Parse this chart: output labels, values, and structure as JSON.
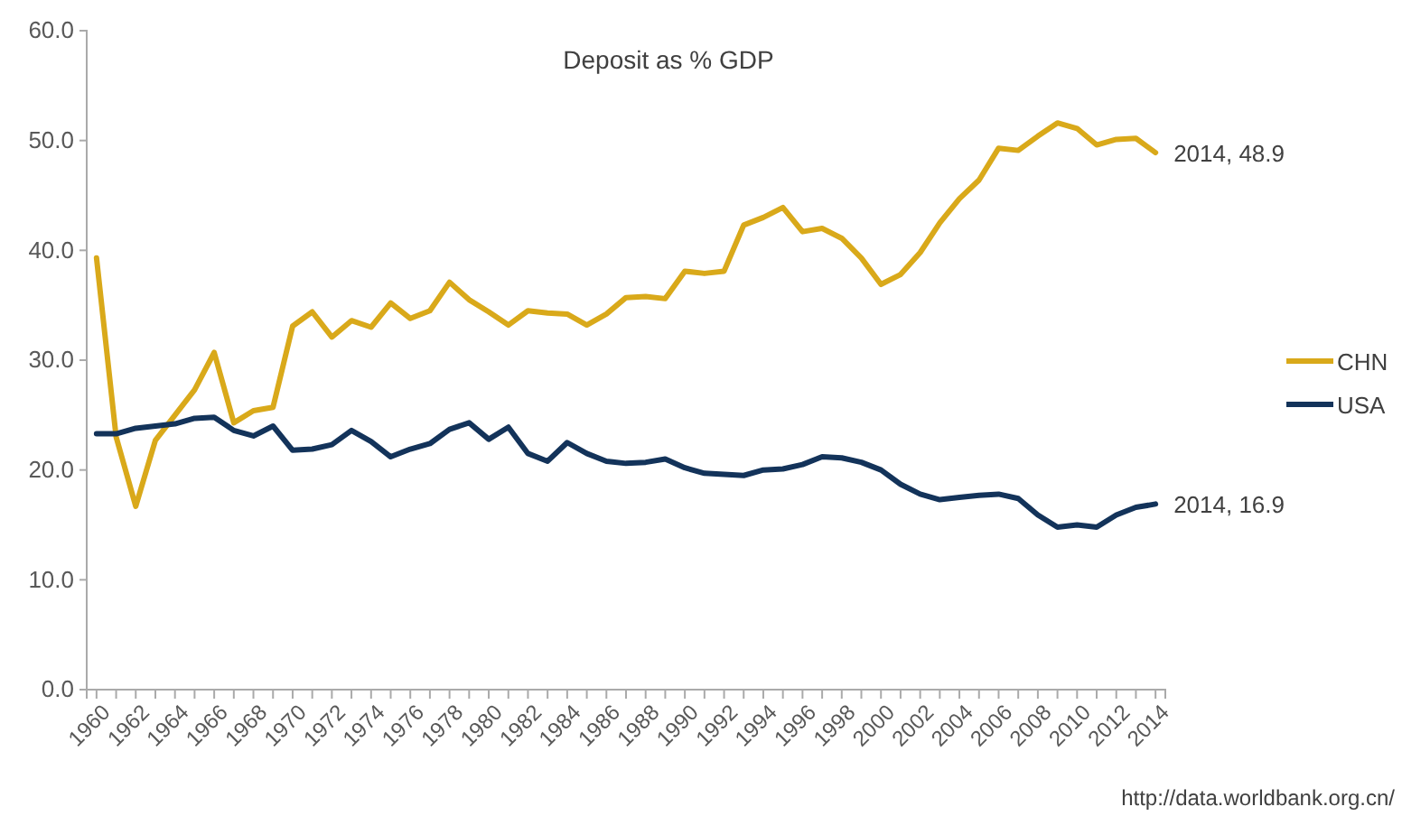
{
  "chart_data": {
    "type": "line",
    "title": "Deposit as % GDP",
    "categories": [
      "1960",
      null,
      "1962",
      null,
      "1964",
      null,
      "1966",
      null,
      "1968",
      null,
      "1970",
      null,
      "1972",
      null,
      "1974",
      null,
      "1976",
      null,
      "1978",
      null,
      "1980",
      null,
      "1982",
      null,
      "1984",
      null,
      "1986",
      null,
      "1988",
      null,
      "1990",
      null,
      "1992",
      null,
      "1994",
      null,
      "1996",
      null,
      "1998",
      null,
      "2000",
      null,
      "2002",
      null,
      "2004",
      null,
      "2006",
      null,
      "2008",
      null,
      "2010",
      null,
      "2012",
      null,
      "2014"
    ],
    "series": [
      {
        "name": "CHN",
        "color": "#d9a91a",
        "values": [
          39.3,
          23,
          16.7,
          22.7,
          25,
          27.3,
          30.7,
          24.3,
          25.4,
          25.7,
          33.1,
          34.4,
          32.1,
          33.6,
          33.0,
          35.2,
          33.8,
          34.5,
          37.1,
          35.5,
          34.4,
          33.2,
          34.5,
          34.3,
          34.2,
          33.2,
          34.2,
          35.7,
          35.8,
          35.6,
          38.1,
          37.9,
          38.1,
          42.3,
          43.0,
          43.9,
          41.7,
          42.0,
          41.1,
          39.3,
          36.9,
          37.8,
          39.8,
          42.5,
          44.7,
          46.4,
          49.3,
          49.1,
          50.4,
          51.6,
          51.1,
          49.6,
          50.1,
          50.2,
          48.9
        ]
      },
      {
        "name": "USA",
        "color": "#13335a",
        "values": [
          23.3,
          23.3,
          23.8,
          24.0,
          24.2,
          24.7,
          24.8,
          23.6,
          23.1,
          24.0,
          21.8,
          21.9,
          22.3,
          23.6,
          22.6,
          21.2,
          21.9,
          22.4,
          23.7,
          24.3,
          22.8,
          23.9,
          21.5,
          20.8,
          22.5,
          21.5,
          20.8,
          20.6,
          20.7,
          21.0,
          20.2,
          19.7,
          19.6,
          19.5,
          20.0,
          20.1,
          20.5,
          21.2,
          21.1,
          20.7,
          20.0,
          18.7,
          17.8,
          17.3,
          17.5,
          17.7,
          17.8,
          17.4,
          15.9,
          14.8,
          15.0,
          14.8,
          15.9,
          16.6,
          16.9
        ]
      }
    ],
    "ylim": [
      0,
      60
    ],
    "yticks": [
      {
        "value": 0,
        "label": "0.0"
      },
      {
        "value": 10,
        "label": "10.0"
      },
      {
        "value": 20,
        "label": "20.0"
      },
      {
        "value": 30,
        "label": "30.0"
      },
      {
        "value": 40,
        "label": "40.0"
      },
      {
        "value": 50,
        "label": "50.0"
      },
      {
        "value": 60,
        "label": "60.0"
      }
    ],
    "annotations": [
      {
        "text": "2014, 48.9",
        "x": "2014",
        "y": 48.9
      },
      {
        "text": "2014, 16.9",
        "x": "2014",
        "y": 16.9
      },
      "http://data.worldbank.org.cn/"
    ],
    "legend": "right",
    "grid": false,
    "marker": "none",
    "line_style": "solid"
  }
}
